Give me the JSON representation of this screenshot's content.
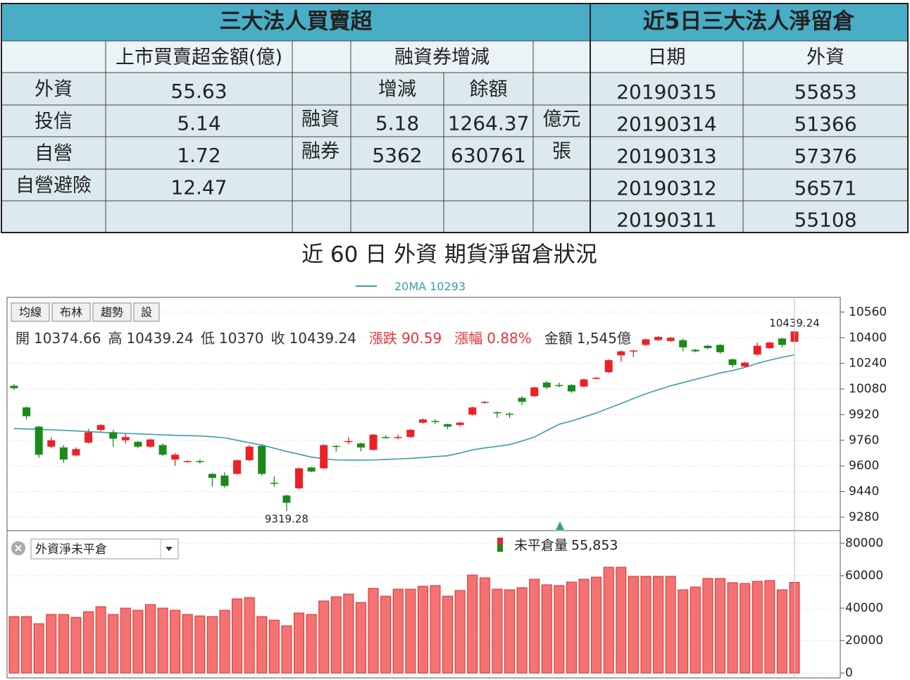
{
  "left_table": {
    "title": "三大法人買賣超",
    "header": [
      "上市買賣超金額(億)",
      "融資券增減"
    ],
    "subheader": [
      "增減",
      "餘額"
    ],
    "rows": [
      [
        "外資",
        55.63
      ],
      [
        "投信",
        5.14
      ],
      [
        "自營",
        1.72
      ],
      [
        "自營避險",
        12.47
      ]
    ],
    "margin": [
      [
        "融資",
        5.18,
        1264.37,
        "億元"
      ],
      [
        "融券",
        5362,
        630761,
        "張"
      ]
    ]
  },
  "right_table": {
    "title": "近5日三大法人淨留倉",
    "header": [
      "日期",
      "外資"
    ],
    "rows": [
      [
        "20190315",
        55853
      ],
      [
        "20190314",
        51366
      ],
      [
        "20190313",
        57376
      ],
      [
        "20190312",
        56571
      ],
      [
        "20190311",
        55108
      ]
    ]
  },
  "chart_data": [
    {
      "type": "candlestick",
      "title": "近 60 日 外資 期貨淨留倉狀況",
      "buttons": [
        "均線",
        "布林",
        "趨勢",
        "設"
      ],
      "up_color": "#ec2127",
      "down_color": "#1a8a1a",
      "quote": {
        "labels": [
          "開",
          "高",
          "低",
          "收",
          "漲跌",
          "漲幅",
          "金額"
        ],
        "change": 90.59,
        "change_pct": {
          "value": 0.88,
          "label": "0.88%"
        },
        "amount": {
          "value": 1545,
          "label": "1,545億"
        }
      },
      "open": [
        10100,
        9965,
        9845,
        9720,
        9715,
        9665,
        9745,
        9825,
        9810,
        9760,
        9750,
        9720,
        9730,
        9640,
        9625,
        9630,
        9550,
        9540,
        9550,
        9636,
        9725,
        9495,
        9415,
        9460,
        9590,
        9585,
        9725,
        9750,
        9740,
        9700,
        9780,
        9775,
        9780,
        9870,
        9880,
        9860,
        9855,
        9920,
        9995,
        9935,
        9925,
        10025,
        10035,
        10120,
        10105,
        10105,
        10095,
        10145,
        10185,
        10290,
        10315,
        10355,
        10385,
        10380,
        10385,
        10325,
        10350,
        10355,
        10265,
        10220,
        10295,
        10335,
        10395,
        10374.66
      ],
      "high": [
        10110,
        9970,
        9850,
        9780,
        9730,
        9715,
        9830,
        9860,
        9825,
        9800,
        9755,
        9770,
        9740,
        9680,
        9635,
        9640,
        9555,
        9560,
        9640,
        9730,
        9735,
        9535,
        9420,
        9590,
        9595,
        9735,
        9730,
        9780,
        9745,
        9800,
        9790,
        9795,
        9830,
        9895,
        9890,
        9865,
        9875,
        9970,
        10005,
        9940,
        9935,
        10035,
        10095,
        10130,
        10120,
        10110,
        10145,
        10155,
        10265,
        10320,
        10325,
        10395,
        10410,
        10405,
        10395,
        10330,
        10355,
        10360,
        10270,
        10250,
        10370,
        10375,
        10400,
        10439.24
      ],
      "low": [
        10075,
        9890,
        9650,
        9710,
        9620,
        9660,
        9740,
        9815,
        9720,
        9740,
        9710,
        9715,
        9660,
        9600,
        9620,
        9615,
        9470,
        9465,
        9545,
        9630,
        9540,
        9470,
        9319.28,
        9455,
        9560,
        9580,
        9690,
        9735,
        9690,
        9695,
        9770,
        9765,
        9775,
        9865,
        9860,
        9830,
        9845,
        9915,
        9990,
        9900,
        9900,
        9980,
        10030,
        10080,
        10090,
        10055,
        10090,
        10140,
        10180,
        10250,
        10280,
        10350,
        10380,
        10375,
        10315,
        10310,
        10330,
        10300,
        10215,
        10215,
        10290,
        10330,
        10340,
        10370
      ],
      "close": [
        10085,
        9910,
        9670,
        9760,
        9640,
        9705,
        9810,
        9855,
        9770,
        9780,
        9720,
        9765,
        9670,
        9670,
        9630,
        9625,
        9525,
        9475,
        9635,
        9720,
        9550,
        9490,
        9370,
        9585,
        9565,
        9730,
        9720,
        9755,
        9715,
        9795,
        9775,
        9780,
        9825,
        9890,
        9875,
        9845,
        9870,
        9965,
        10000,
        9930,
        9920,
        10000,
        10090,
        10090,
        10100,
        10065,
        10140,
        10150,
        10260,
        10315,
        10320,
        10390,
        10405,
        10400,
        10340,
        10315,
        10335,
        10310,
        10230,
        10245,
        10350,
        10370,
        10355,
        10439.24
      ],
      "series": [
        {
          "name": "20MA",
          "color": "#3a9da6",
          "values": [
            9833,
            9831,
            9828,
            9825,
            9822,
            9818,
            9814,
            9810,
            9806,
            9803,
            9800,
            9797,
            9794,
            9791,
            9789,
            9787,
            9782,
            9775,
            9760,
            9745,
            9730,
            9710,
            9690,
            9673,
            9655,
            9645,
            9637,
            9636,
            9636,
            9637,
            9640,
            9643,
            9647,
            9652,
            9658,
            9663,
            9680,
            9700,
            9712,
            9722,
            9733,
            9755,
            9780,
            9820,
            9860,
            9880,
            9905,
            9930,
            9960,
            9990,
            10020,
            10050,
            10075,
            10100,
            10120,
            10140,
            10160,
            10180,
            10195,
            10215,
            10240,
            10260,
            10278,
            10293
          ]
        }
      ],
      "ylim": [
        9196,
        10652
      ],
      "yticks": [
        9280,
        9440,
        9600,
        9760,
        9920,
        10080,
        10240,
        10400,
        10560
      ],
      "grid": true
    },
    {
      "type": "bar",
      "selector": "外資淨未平倉",
      "series": [
        {
          "name": "未平倉量",
          "color": "#f47272",
          "last_label": "55,853",
          "values": [
            34800,
            34800,
            30400,
            36100,
            36100,
            34300,
            37800,
            40900,
            36100,
            40000,
            38700,
            42200,
            40000,
            38700,
            36100,
            35200,
            34800,
            38700,
            45700,
            46500,
            34800,
            32600,
            29100,
            37000,
            36100,
            44400,
            47000,
            48700,
            43500,
            52200,
            47400,
            51700,
            51700,
            53500,
            53900,
            47400,
            50900,
            60400,
            58700,
            51700,
            51300,
            52600,
            57800,
            54400,
            53900,
            56100,
            57800,
            59100,
            65200,
            65200,
            59600,
            59600,
            59600,
            59600,
            51300,
            53000,
            58300,
            58300,
            55700,
            55200,
            56500,
            57000,
            51300,
            55853
          ]
        }
      ],
      "ylim": [
        -3000,
        87800
      ],
      "yticks": [
        0,
        20000,
        40000,
        60000,
        80000
      ],
      "grid": true
    }
  ]
}
